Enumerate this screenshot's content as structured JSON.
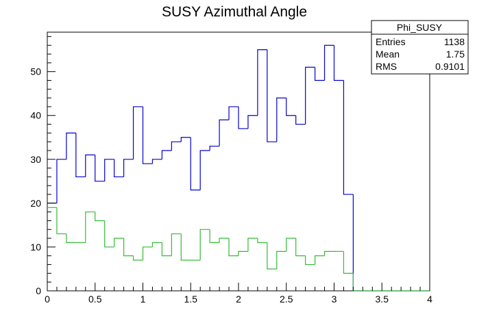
{
  "chart_data": {
    "type": "histogram",
    "title": "SUSY Azimuthal Angle",
    "xlabel": "",
    "ylabel": "",
    "xlim": [
      0,
      4
    ],
    "ylim": [
      0,
      59
    ],
    "grid": false,
    "x_ticks": [
      "0",
      "0.5",
      "1",
      "1.5",
      "2",
      "2.5",
      "3",
      "3.5",
      "4"
    ],
    "y_ticks": [
      "0",
      "10",
      "20",
      "30",
      "40",
      "50"
    ],
    "bin_width": 0.1,
    "series": [
      {
        "color": "#0000cc",
        "bin_edges_start": 0.0,
        "values": [
          20,
          30,
          36,
          26,
          31,
          25,
          30,
          26,
          30,
          42,
          29,
          30,
          32,
          34,
          35,
          23,
          32,
          33,
          39,
          42,
          37,
          40,
          55,
          34,
          44,
          40,
          38,
          51,
          48,
          56,
          48,
          22,
          0,
          0,
          0,
          0,
          0,
          0,
          0,
          0
        ]
      },
      {
        "color": "#33bb33",
        "bin_edges_start": 0.0,
        "values": [
          19,
          13,
          11,
          11,
          18,
          16,
          10,
          12,
          8,
          7,
          10,
          11,
          8,
          13,
          7,
          7,
          14,
          11,
          12,
          8,
          9,
          12,
          11,
          5,
          9,
          12,
          8,
          6,
          8,
          9,
          9,
          4,
          0,
          0,
          0,
          0,
          0,
          0,
          0,
          0
        ]
      }
    ],
    "stats_box": {
      "title": "Phi_SUSY",
      "rows": [
        {
          "label": "Entries",
          "value": "1138"
        },
        {
          "label": "Mean",
          "value": "1.75"
        },
        {
          "label": "RMS",
          "value": "0.9101"
        }
      ]
    }
  }
}
